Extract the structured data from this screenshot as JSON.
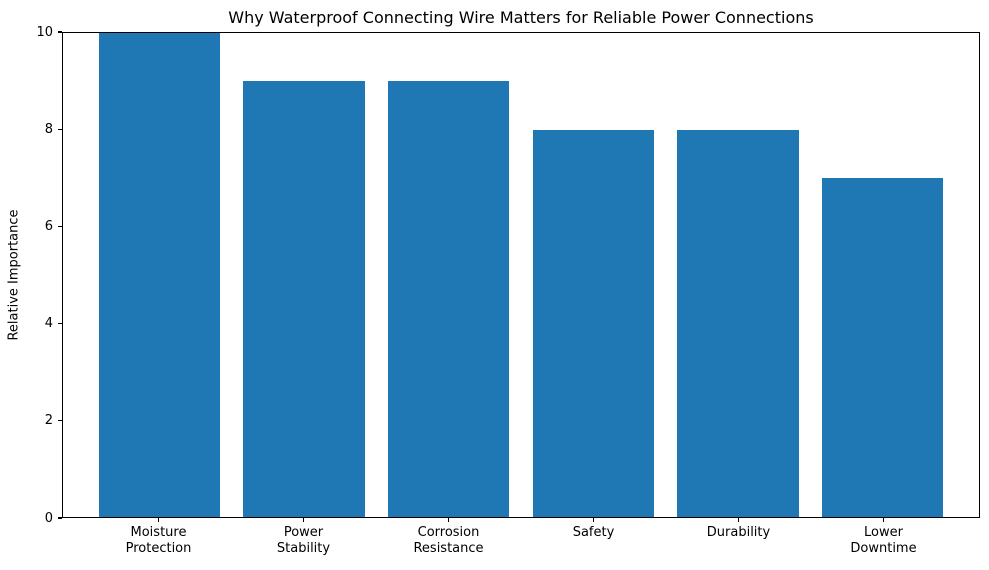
{
  "chart_data": {
    "type": "bar",
    "title": "Why Waterproof Connecting Wire Matters for Reliable Power Connections",
    "categories": [
      "Moisture\nProtection",
      "Power\nStability",
      "Corrosion\nResistance",
      "Safety",
      "Durability",
      "Lower\nDowntime"
    ],
    "values": [
      10,
      9,
      9,
      8,
      8,
      7
    ],
    "xlabel": "",
    "ylabel": "Relative Importance",
    "ylim": [
      0,
      10
    ],
    "yticks": [
      0,
      2,
      4,
      6,
      8,
      10
    ],
    "bar_color": "#1f77b4",
    "spine_color": "#000000",
    "grid": false,
    "legend": "none"
  }
}
